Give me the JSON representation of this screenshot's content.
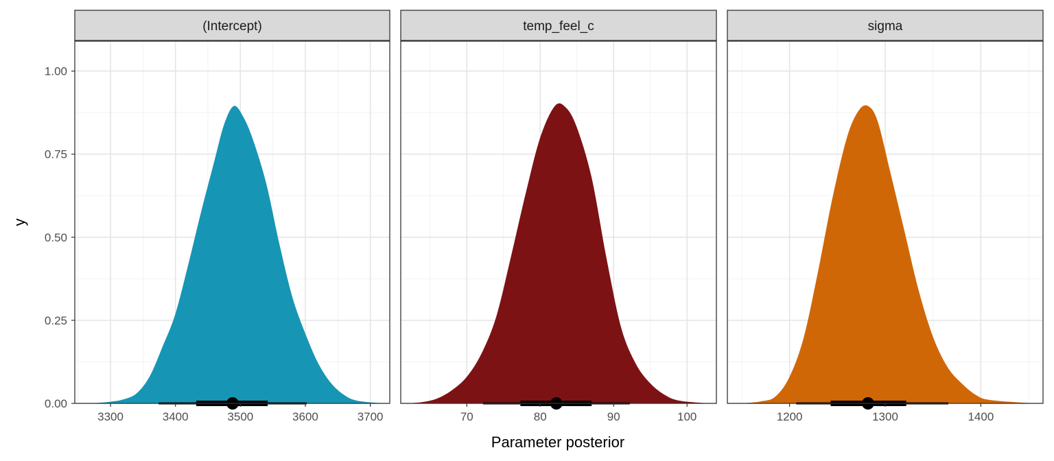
{
  "chart_data": {
    "type": "area",
    "xlabel": "Parameter posterior",
    "ylabel": "y",
    "ylim": [
      0,
      1
    ],
    "y_ticks": [
      "0.00",
      "0.25",
      "0.50",
      "0.75",
      "1.00"
    ],
    "y_tick_values": [
      0,
      0.25,
      0.5,
      0.75,
      1
    ],
    "grid": true,
    "legend": "none",
    "facets": [
      {
        "name": "(Intercept)",
        "color": "#1795b4",
        "xlim": [
          3245,
          3730
        ],
        "x_ticks": [
          3300,
          3400,
          3500,
          3600,
          3700
        ],
        "density": [
          [
            3270,
            0.0
          ],
          [
            3300,
            0.005
          ],
          [
            3320,
            0.012
          ],
          [
            3340,
            0.03
          ],
          [
            3360,
            0.08
          ],
          [
            3380,
            0.17
          ],
          [
            3400,
            0.27
          ],
          [
            3420,
            0.42
          ],
          [
            3440,
            0.58
          ],
          [
            3460,
            0.73
          ],
          [
            3475,
            0.84
          ],
          [
            3490,
            0.895
          ],
          [
            3505,
            0.86
          ],
          [
            3520,
            0.79
          ],
          [
            3540,
            0.66
          ],
          [
            3560,
            0.48
          ],
          [
            3580,
            0.32
          ],
          [
            3600,
            0.21
          ],
          [
            3620,
            0.12
          ],
          [
            3640,
            0.06
          ],
          [
            3660,
            0.025
          ],
          [
            3680,
            0.008
          ],
          [
            3720,
            0.0
          ]
        ],
        "point": 3488,
        "inner_interval": [
          3432,
          3542
        ],
        "outer_interval": [
          3374,
          3602
        ]
      },
      {
        "name": "temp_feel_c",
        "color": "#7d1214",
        "xlim": [
          61,
          104
        ],
        "x_ticks": [
          70,
          80,
          90,
          100
        ],
        "density": [
          [
            62,
            0.0
          ],
          [
            64,
            0.004
          ],
          [
            66,
            0.015
          ],
          [
            68,
            0.04
          ],
          [
            70,
            0.08
          ],
          [
            72,
            0.15
          ],
          [
            74,
            0.26
          ],
          [
            76,
            0.44
          ],
          [
            78,
            0.63
          ],
          [
            80,
            0.8
          ],
          [
            82,
            0.895
          ],
          [
            83.5,
            0.89
          ],
          [
            85,
            0.83
          ],
          [
            87,
            0.68
          ],
          [
            89,
            0.44
          ],
          [
            91,
            0.23
          ],
          [
            93,
            0.12
          ],
          [
            95,
            0.06
          ],
          [
            97,
            0.025
          ],
          [
            99,
            0.008
          ],
          [
            103,
            0.0
          ]
        ],
        "point": 82.2,
        "inner_interval": [
          77.3,
          87
        ],
        "outer_interval": [
          72.2,
          92.2
        ]
      },
      {
        "name": "sigma",
        "color": "#d06707",
        "xlim": [
          1135,
          1465
        ],
        "x_ticks": [
          1200,
          1300,
          1400
        ],
        "density": [
          [
            1150,
            0.0
          ],
          [
            1170,
            0.006
          ],
          [
            1185,
            0.02
          ],
          [
            1200,
            0.08
          ],
          [
            1215,
            0.2
          ],
          [
            1230,
            0.4
          ],
          [
            1245,
            0.62
          ],
          [
            1260,
            0.8
          ],
          [
            1272,
            0.88
          ],
          [
            1282,
            0.895
          ],
          [
            1292,
            0.85
          ],
          [
            1305,
            0.7
          ],
          [
            1320,
            0.52
          ],
          [
            1335,
            0.34
          ],
          [
            1350,
            0.2
          ],
          [
            1365,
            0.11
          ],
          [
            1380,
            0.06
          ],
          [
            1395,
            0.025
          ],
          [
            1410,
            0.01
          ],
          [
            1455,
            0.0
          ]
        ],
        "point": 1282,
        "inner_interval": [
          1243,
          1322
        ],
        "outer_interval": [
          1207,
          1366
        ]
      }
    ]
  }
}
